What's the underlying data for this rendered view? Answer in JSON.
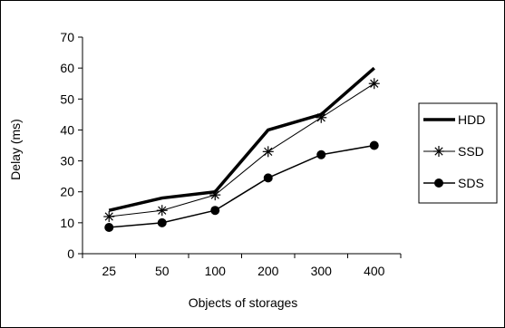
{
  "chart_data": {
    "type": "line",
    "categories": [
      "25",
      "50",
      "100",
      "200",
      "300",
      "400"
    ],
    "xlabel": "Objects of storages",
    "ylabel": "Delay (ms)",
    "ylim": [
      0,
      70
    ],
    "yticks": [
      0,
      10,
      20,
      30,
      40,
      50,
      60,
      70
    ],
    "grid": false,
    "legend_position": "right",
    "series": [
      {
        "name": "HDD",
        "marker": "none",
        "line_style": "thick-solid",
        "color": "#000000",
        "values": [
          14,
          18,
          20,
          40,
          45,
          60
        ]
      },
      {
        "name": "SSD",
        "marker": "asterisk",
        "line_style": "thin-solid",
        "color": "#000000",
        "values": [
          12,
          14,
          19,
          33,
          44,
          55
        ]
      },
      {
        "name": "SDS",
        "marker": "filled-circle",
        "line_style": "solid",
        "color": "#000000",
        "values": [
          8.5,
          10,
          14,
          24.5,
          32,
          35
        ]
      }
    ]
  }
}
